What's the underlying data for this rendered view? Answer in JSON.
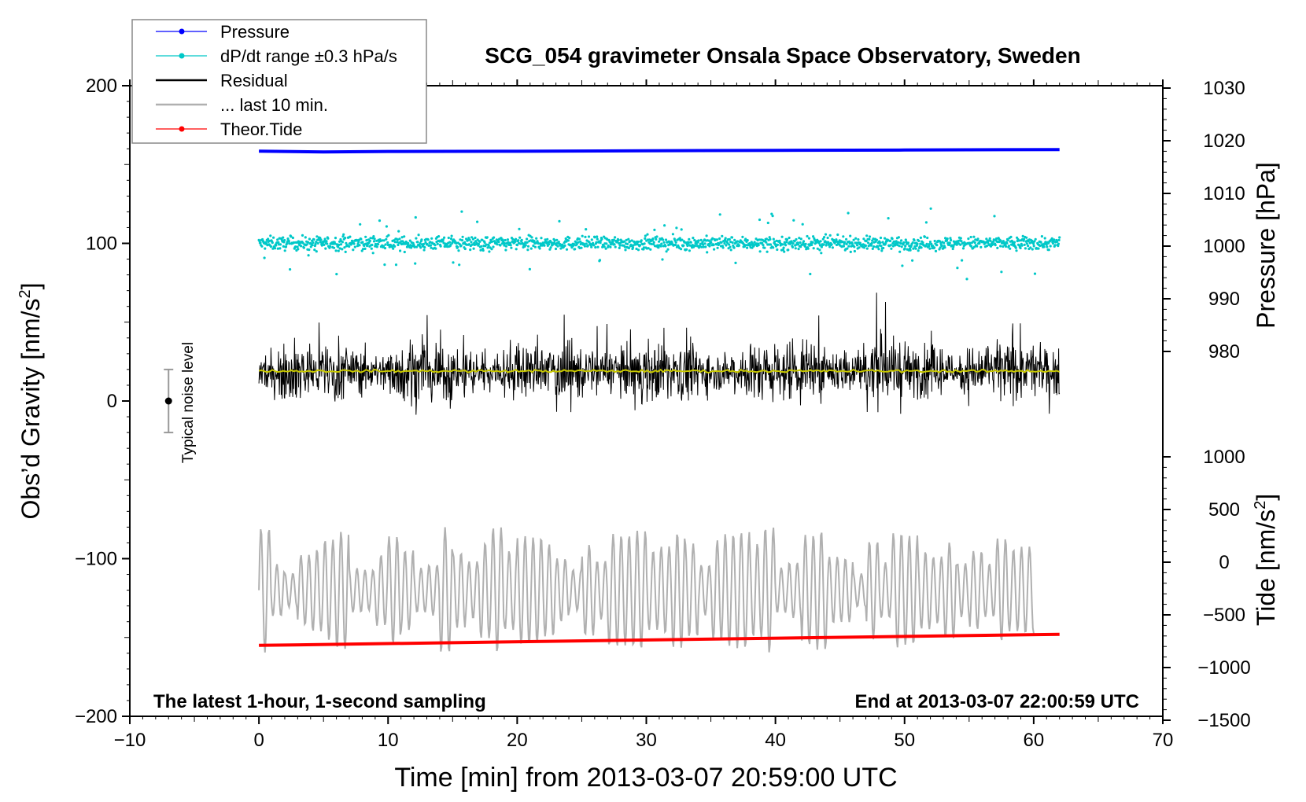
{
  "chart_data": {
    "type": "line",
    "title": "SCG_054 gravimeter Onsala Space Observatory, Sweden",
    "xlabel": "Time [min] from 2013-03-07 20:59:00 UTC",
    "ylabel_main": "Obs’d Gravity [nm/s",
    "ylabel_main_sup": "2",
    "ylabel_main_end": "]",
    "ylabel_pressure": "Pressure [hPa]",
    "ylabel_tide": "Tide [nm/s",
    "ylabel_tide_sup": "2",
    "ylabel_tide_end": "]",
    "xlim": [
      -10,
      70
    ],
    "ylim": [
      -200,
      200
    ],
    "pressure_ylim": [
      970,
      1030
    ],
    "tide_ylim": [
      -1500,
      1000
    ],
    "x_ticks": [
      "−10",
      "0",
      "10",
      "20",
      "30",
      "40",
      "50",
      "60",
      "70"
    ],
    "x_tick_values": [
      -10,
      0,
      10,
      20,
      30,
      40,
      50,
      60,
      70
    ],
    "y_ticks": [
      "−200",
      "−100",
      "0",
      "100",
      "200"
    ],
    "y_tick_values": [
      -200,
      -100,
      0,
      100,
      200
    ],
    "pressure_ticks": [
      "980",
      "990",
      "1000",
      "1010",
      "1020",
      "1030"
    ],
    "pressure_tick_values": [
      980,
      990,
      1000,
      1010,
      1020,
      1030
    ],
    "tide_ticks": [
      "−1500",
      "−1000",
      "−500",
      "0",
      "500",
      "1000"
    ],
    "tide_tick_values": [
      -1500,
      -1000,
      -500,
      0,
      500,
      1000
    ],
    "legend": [
      {
        "label": "Pressure",
        "color": "#0000ff",
        "style": "line-dot"
      },
      {
        "label": "dP/dt range ±0.3 hPa/s",
        "color": "#00c8c8",
        "style": "line-dot"
      },
      {
        "label": "Residual",
        "color": "#000000",
        "style": "line"
      },
      {
        "label": "... last 10 min.",
        "color": "#b0b0b0",
        "style": "line"
      },
      {
        "label": "Theor.Tide",
        "color": "#ff0000",
        "style": "line-dot"
      }
    ],
    "annotations": {
      "bottom_left": "The latest 1-hour, 1-second sampling",
      "bottom_right": "End at 2013-03-07 22:00:59 UTC",
      "noise_label": "Typical noise level"
    },
    "noise_bar": {
      "x": -7,
      "center": 0,
      "low": -20,
      "high": 20
    },
    "series": [
      {
        "name": "Pressure",
        "color": "#0000ff",
        "x": [
          0,
          5,
          10,
          20,
          30,
          40,
          50,
          62
        ],
        "values": [
          158.5,
          158.0,
          158.3,
          158.4,
          158.7,
          159.0,
          159.2,
          159.5
        ]
      },
      {
        "name": "dP/dt",
        "color": "#00c8c8",
        "center": 100,
        "spread": 3,
        "x_range": [
          0,
          62
        ]
      },
      {
        "name": "Residual",
        "color": "#000000",
        "center": 19,
        "amplitude": 15,
        "x_range": [
          0,
          62
        ]
      },
      {
        "name": "Residual smoothed",
        "color": "#c8c800",
        "center": 19,
        "x_range": [
          0,
          62
        ]
      },
      {
        "name": "last 10 min.",
        "color": "#b0b0b0",
        "center": -120,
        "amplitude": 35,
        "x_range": [
          0,
          60
        ]
      },
      {
        "name": "Theor.Tide",
        "color": "#ff0000",
        "x": [
          0,
          62
        ],
        "values": [
          -155,
          -148
        ]
      }
    ]
  }
}
